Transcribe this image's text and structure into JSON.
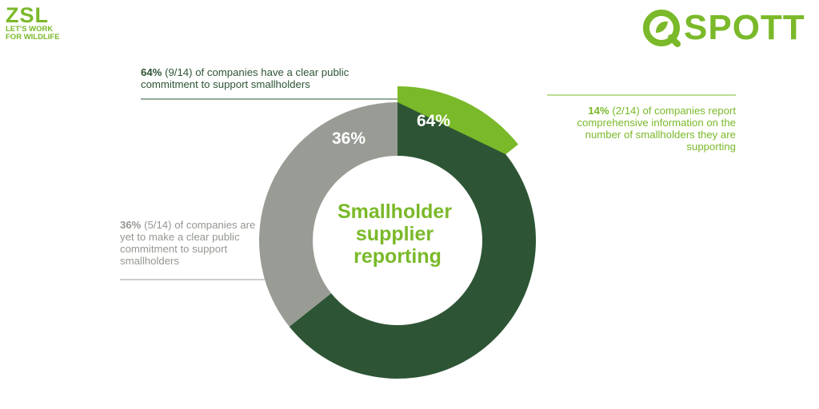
{
  "logos": {
    "zsl": {
      "name": "ZSL",
      "line1": "LET'S WORK",
      "line2": "FOR WILDLIFE"
    },
    "spott": {
      "name": "SPOTT",
      "icon": "leaf-q-icon"
    }
  },
  "colors": {
    "committed": "#2d5535",
    "comprehensive": "#7ab929",
    "not_committed": "#989c94",
    "center_title": "#7ab929"
  },
  "chart_data": {
    "type": "pie",
    "center_title": [
      "Smallholder",
      "supplier",
      "reporting"
    ],
    "ring": {
      "total": 14,
      "slices": [
        {
          "key": "committed",
          "value": 9,
          "label": "64%"
        },
        {
          "key": "not_committed",
          "value": 5,
          "label": "36%"
        }
      ]
    },
    "overlay": {
      "key": "comprehensive",
      "value": 2,
      "label": "14%"
    },
    "annotations": {
      "committed": {
        "pct": "64%",
        "count": "(9/14) of companies have a clear public commitment to support smallholders"
      },
      "comprehensive": {
        "pct": "14%",
        "count": "(2/14) of companies report comprehensive information on the number of smallholders they are supporting"
      },
      "not_committed": {
        "pct": "36%",
        "count": "(5/14) of companies are yet to make a clear public commitment to support smallholders"
      }
    }
  }
}
